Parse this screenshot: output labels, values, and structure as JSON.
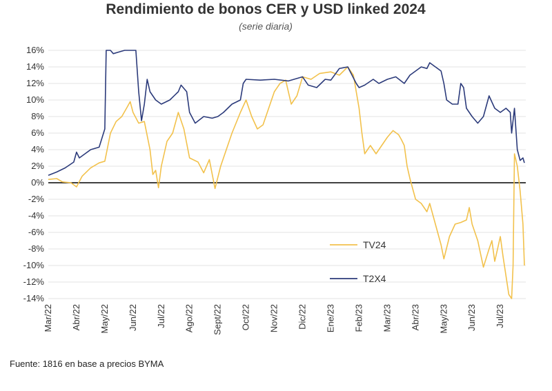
{
  "chart_data": {
    "type": "line",
    "title": "Rendimiento de bonos CER y USD linked 2024",
    "subtitle": "(serie diaria)",
    "source": "Fuente: 1816 en base a precios BYMA",
    "xlabel": "",
    "ylabel": "",
    "ylim": [
      -14,
      16
    ],
    "y_tick_labels": [
      "16%",
      "14%",
      "12%",
      "10%",
      "8%",
      "6%",
      "4%",
      "2%",
      "0%",
      "-2%",
      "-4%",
      "-6%",
      "-8%",
      "-10%",
      "-12%",
      "-14%"
    ],
    "x_tick_labels": [
      "Mar/22",
      "Abr/22",
      "May/22",
      "Jun/22",
      "Jul/22",
      "Ago/22",
      "Sept/22",
      "Oct/22",
      "Nov/22",
      "Dic/22",
      "Ene/23",
      "Feb/23",
      "Mar/23",
      "Abr/23",
      "May/23",
      "Jun/23",
      "Jul/23"
    ],
    "grid": true,
    "legend_position": "bottom-right",
    "series": [
      {
        "name": "TV24",
        "color": "#f2c14b",
        "points": [
          [
            0.0,
            0.4
          ],
          [
            0.3,
            0.5
          ],
          [
            0.5,
            0.1
          ],
          [
            0.8,
            0.0
          ],
          [
            1.0,
            -0.5
          ],
          [
            1.2,
            0.8
          ],
          [
            1.5,
            1.8
          ],
          [
            1.8,
            2.4
          ],
          [
            2.0,
            2.6
          ],
          [
            2.2,
            6.0
          ],
          [
            2.4,
            7.4
          ],
          [
            2.6,
            8.0
          ],
          [
            2.8,
            9.2
          ],
          [
            2.9,
            9.8
          ],
          [
            3.0,
            8.5
          ],
          [
            3.2,
            7.2
          ],
          [
            3.4,
            7.4
          ],
          [
            3.6,
            4.0
          ],
          [
            3.7,
            1.0
          ],
          [
            3.8,
            1.5
          ],
          [
            3.9,
            -0.6
          ],
          [
            4.0,
            2.0
          ],
          [
            4.2,
            5.0
          ],
          [
            4.4,
            6.0
          ],
          [
            4.6,
            8.5
          ],
          [
            4.8,
            6.5
          ],
          [
            5.0,
            3.0
          ],
          [
            5.3,
            2.5
          ],
          [
            5.5,
            1.2
          ],
          [
            5.7,
            2.8
          ],
          [
            5.9,
            -0.7
          ],
          [
            6.1,
            2.0
          ],
          [
            6.3,
            4.0
          ],
          [
            6.5,
            6.0
          ],
          [
            6.8,
            8.5
          ],
          [
            7.0,
            10.0
          ],
          [
            7.2,
            8.0
          ],
          [
            7.4,
            6.5
          ],
          [
            7.6,
            7.0
          ],
          [
            7.8,
            9.0
          ],
          [
            8.0,
            11.0
          ],
          [
            8.2,
            12.0
          ],
          [
            8.4,
            12.4
          ],
          [
            8.6,
            9.5
          ],
          [
            8.8,
            10.5
          ],
          [
            9.0,
            12.8
          ],
          [
            9.3,
            12.5
          ],
          [
            9.6,
            13.2
          ],
          [
            10.0,
            13.4
          ],
          [
            10.3,
            13.0
          ],
          [
            10.6,
            14.0
          ],
          [
            10.8,
            13.0
          ],
          [
            11.0,
            9.0
          ],
          [
            11.1,
            6.0
          ],
          [
            11.2,
            3.5
          ],
          [
            11.4,
            4.5
          ],
          [
            11.6,
            3.5
          ],
          [
            11.8,
            4.5
          ],
          [
            12.0,
            5.5
          ],
          [
            12.2,
            6.3
          ],
          [
            12.4,
            5.8
          ],
          [
            12.5,
            5.2
          ],
          [
            12.6,
            4.5
          ],
          [
            12.7,
            2.0
          ],
          [
            12.8,
            0.5
          ],
          [
            13.0,
            -2.0
          ],
          [
            13.2,
            -2.5
          ],
          [
            13.4,
            -3.5
          ],
          [
            13.5,
            -2.5
          ],
          [
            13.7,
            -5.0
          ],
          [
            13.9,
            -7.5
          ],
          [
            14.0,
            -9.2
          ],
          [
            14.2,
            -6.5
          ],
          [
            14.4,
            -5.0
          ],
          [
            14.6,
            -4.8
          ],
          [
            14.8,
            -4.5
          ],
          [
            14.9,
            -3.0
          ],
          [
            15.0,
            -5.0
          ],
          [
            15.2,
            -7.0
          ],
          [
            15.4,
            -10.2
          ],
          [
            15.6,
            -8.0
          ],
          [
            15.7,
            -7.0
          ],
          [
            15.8,
            -9.5
          ],
          [
            15.9,
            -8.0
          ],
          [
            16.0,
            -6.5
          ],
          [
            16.1,
            -9.0
          ],
          [
            16.3,
            -13.5
          ],
          [
            16.4,
            -14.0
          ],
          [
            16.45,
            -10.0
          ],
          [
            16.5,
            3.5
          ],
          [
            16.6,
            2.0
          ],
          [
            16.7,
            -1.0
          ],
          [
            16.8,
            -5.0
          ],
          [
            16.85,
            -10.0
          ]
        ]
      },
      {
        "name": "T2X4",
        "color": "#2b3a7a",
        "points": [
          [
            0.0,
            0.9
          ],
          [
            0.3,
            1.3
          ],
          [
            0.6,
            1.8
          ],
          [
            0.9,
            2.5
          ],
          [
            1.0,
            3.7
          ],
          [
            1.1,
            3.0
          ],
          [
            1.3,
            3.5
          ],
          [
            1.5,
            4.0
          ],
          [
            1.8,
            4.3
          ],
          [
            2.0,
            6.5
          ],
          [
            2.05,
            16.0
          ],
          [
            2.2,
            16.0
          ],
          [
            2.3,
            15.6
          ],
          [
            2.5,
            15.8
          ],
          [
            2.7,
            16.0
          ],
          [
            2.9,
            16.0
          ],
          [
            3.1,
            16.0
          ],
          [
            3.2,
            11.0
          ],
          [
            3.3,
            7.5
          ],
          [
            3.4,
            9.5
          ],
          [
            3.5,
            12.5
          ],
          [
            3.6,
            11.0
          ],
          [
            3.8,
            10.0
          ],
          [
            4.0,
            9.5
          ],
          [
            4.3,
            10.0
          ],
          [
            4.6,
            11.0
          ],
          [
            4.7,
            11.8
          ],
          [
            4.9,
            11.0
          ],
          [
            5.0,
            8.5
          ],
          [
            5.2,
            7.2
          ],
          [
            5.5,
            8.0
          ],
          [
            5.8,
            7.8
          ],
          [
            6.0,
            8.0
          ],
          [
            6.2,
            8.5
          ],
          [
            6.5,
            9.5
          ],
          [
            6.8,
            10.0
          ],
          [
            6.9,
            12.0
          ],
          [
            7.0,
            12.5
          ],
          [
            7.5,
            12.4
          ],
          [
            8.0,
            12.5
          ],
          [
            8.5,
            12.3
          ],
          [
            9.0,
            12.8
          ],
          [
            9.2,
            11.8
          ],
          [
            9.5,
            11.5
          ],
          [
            9.8,
            12.5
          ],
          [
            10.0,
            12.4
          ],
          [
            10.3,
            13.8
          ],
          [
            10.6,
            14.0
          ],
          [
            10.9,
            12.0
          ],
          [
            11.0,
            11.5
          ],
          [
            11.2,
            11.8
          ],
          [
            11.5,
            12.5
          ],
          [
            11.7,
            12.0
          ],
          [
            12.0,
            12.5
          ],
          [
            12.3,
            12.8
          ],
          [
            12.6,
            12.0
          ],
          [
            12.8,
            13.0
          ],
          [
            13.0,
            13.5
          ],
          [
            13.2,
            14.0
          ],
          [
            13.4,
            13.8
          ],
          [
            13.5,
            14.5
          ],
          [
            13.7,
            14.0
          ],
          [
            13.9,
            13.5
          ],
          [
            14.0,
            12.0
          ],
          [
            14.1,
            10.0
          ],
          [
            14.3,
            9.5
          ],
          [
            14.5,
            9.5
          ],
          [
            14.6,
            12.0
          ],
          [
            14.7,
            11.5
          ],
          [
            14.8,
            9.0
          ],
          [
            15.0,
            8.0
          ],
          [
            15.2,
            7.2
          ],
          [
            15.4,
            8.0
          ],
          [
            15.6,
            10.5
          ],
          [
            15.8,
            9.0
          ],
          [
            16.0,
            8.5
          ],
          [
            16.2,
            9.0
          ],
          [
            16.35,
            8.5
          ],
          [
            16.4,
            6.0
          ],
          [
            16.5,
            9.0
          ],
          [
            16.6,
            4.0
          ],
          [
            16.7,
            2.7
          ],
          [
            16.8,
            3.0
          ],
          [
            16.85,
            2.4
          ]
        ]
      }
    ]
  }
}
